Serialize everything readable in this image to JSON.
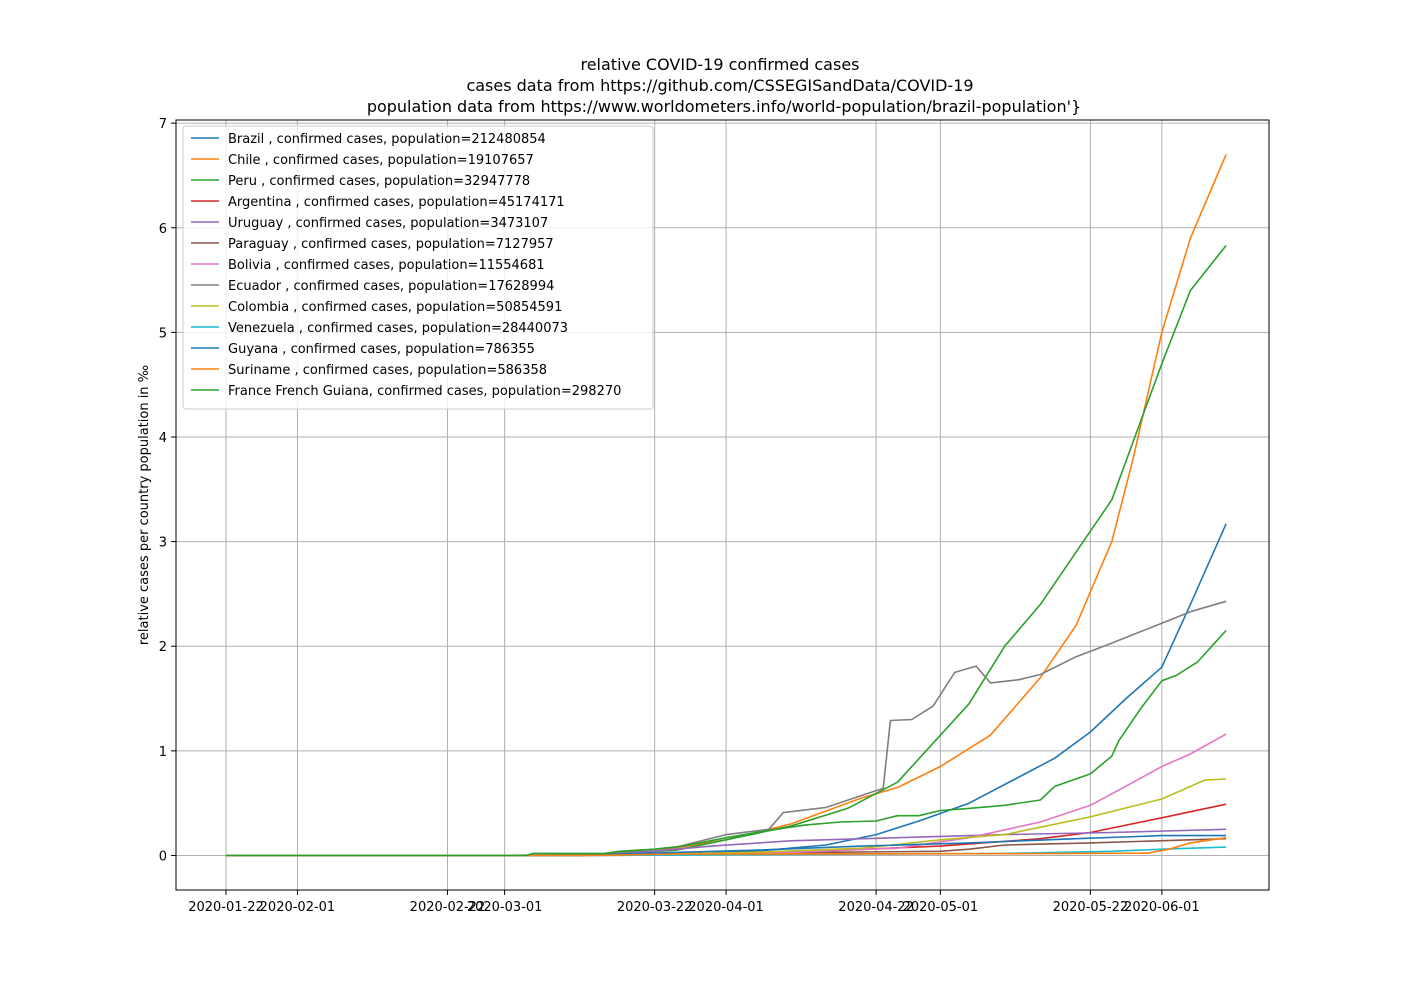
{
  "chart_data": {
    "type": "line",
    "title": "relative COVID-19 confirmed cases",
    "subtitle_lines": [
      "cases data from https://github.com/CSSEGISandData/COVID-19",
      "population data from https://www.worldometers.info/world-population/brazil-population'}"
    ],
    "xlabel": "",
    "ylabel": "relative cases per country population in ‰",
    "x_ticks": [
      "2020-01-22",
      "2020-02-01",
      "2020-02-22",
      "2020-03-01",
      "2020-03-22",
      "2020-04-01",
      "2020-04-22",
      "2020-05-01",
      "2020-05-22",
      "2020-06-01"
    ],
    "y_ticks": [
      "0",
      "1",
      "2",
      "3",
      "4",
      "5",
      "6",
      "7"
    ],
    "xlim": [
      "2020-01-15",
      "2020-06-16"
    ],
    "ylim": [
      -0.33,
      7.03
    ],
    "grid": true,
    "legend_position": "top-left",
    "series": [
      {
        "name": "Brazil , confirmed cases, population=212480854",
        "color": "#1f77b4",
        "points": [
          [
            "2020-01-22",
            0
          ],
          [
            "2020-03-10",
            0
          ],
          [
            "2020-03-25",
            0.01
          ],
          [
            "2020-04-05",
            0.04
          ],
          [
            "2020-04-15",
            0.1
          ],
          [
            "2020-04-22",
            0.2
          ],
          [
            "2020-04-28",
            0.33
          ],
          [
            "2020-05-05",
            0.5
          ],
          [
            "2020-05-12",
            0.75
          ],
          [
            "2020-05-17",
            0.93
          ],
          [
            "2020-05-22",
            1.18
          ],
          [
            "2020-05-27",
            1.5
          ],
          [
            "2020-06-01",
            1.8
          ],
          [
            "2020-06-05",
            2.4
          ],
          [
            "2020-06-10",
            3.17
          ]
        ]
      },
      {
        "name": "Chile , confirmed cases, population=19107657",
        "color": "#ff7f0e",
        "points": [
          [
            "2020-01-22",
            0
          ],
          [
            "2020-03-03",
            0
          ],
          [
            "2020-03-15",
            0.01
          ],
          [
            "2020-03-22",
            0.04
          ],
          [
            "2020-04-01",
            0.15
          ],
          [
            "2020-04-10",
            0.3
          ],
          [
            "2020-04-20",
            0.55
          ],
          [
            "2020-04-25",
            0.65
          ],
          [
            "2020-05-01",
            0.85
          ],
          [
            "2020-05-08",
            1.15
          ],
          [
            "2020-05-15",
            1.7
          ],
          [
            "2020-05-20",
            2.2
          ],
          [
            "2020-05-25",
            3.0
          ],
          [
            "2020-05-28",
            3.8
          ],
          [
            "2020-06-01",
            5.0
          ],
          [
            "2020-06-05",
            5.9
          ],
          [
            "2020-06-10",
            6.7
          ]
        ]
      },
      {
        "name": "Peru , confirmed cases, population=32947778",
        "color": "#2ca02c",
        "points": [
          [
            "2020-01-22",
            0
          ],
          [
            "2020-03-06",
            0
          ],
          [
            "2020-03-15",
            0.01
          ],
          [
            "2020-03-25",
            0.05
          ],
          [
            "2020-04-01",
            0.15
          ],
          [
            "2020-04-10",
            0.28
          ],
          [
            "2020-04-18",
            0.45
          ],
          [
            "2020-04-25",
            0.7
          ],
          [
            "2020-05-01",
            1.15
          ],
          [
            "2020-05-05",
            1.45
          ],
          [
            "2020-05-10",
            2.0
          ],
          [
            "2020-05-15",
            2.4
          ],
          [
            "2020-05-20",
            2.9
          ],
          [
            "2020-05-25",
            3.4
          ],
          [
            "2020-06-01",
            4.7
          ],
          [
            "2020-06-05",
            5.4
          ],
          [
            "2020-06-10",
            5.83
          ]
        ]
      },
      {
        "name": "Argentina , confirmed cases, population=45174171",
        "color": "#d62728",
        "points": [
          [
            "2020-01-22",
            0
          ],
          [
            "2020-03-05",
            0
          ],
          [
            "2020-03-20",
            0.01
          ],
          [
            "2020-04-10",
            0.03
          ],
          [
            "2020-05-01",
            0.09
          ],
          [
            "2020-05-15",
            0.16
          ],
          [
            "2020-05-22",
            0.22
          ],
          [
            "2020-06-01",
            0.36
          ],
          [
            "2020-06-10",
            0.49
          ]
        ]
      },
      {
        "name": "Uruguay , confirmed cases, population=3473107",
        "color": "#9467bd",
        "points": [
          [
            "2020-01-22",
            0
          ],
          [
            "2020-03-12",
            0
          ],
          [
            "2020-03-20",
            0.03
          ],
          [
            "2020-03-30",
            0.09
          ],
          [
            "2020-04-10",
            0.14
          ],
          [
            "2020-04-25",
            0.17
          ],
          [
            "2020-05-10",
            0.2
          ],
          [
            "2020-05-25",
            0.22
          ],
          [
            "2020-06-10",
            0.25
          ]
        ]
      },
      {
        "name": "Paraguay , confirmed cases, population=7127957",
        "color": "#8c564b",
        "points": [
          [
            "2020-01-22",
            0
          ],
          [
            "2020-03-07",
            0
          ],
          [
            "2020-03-25",
            0.005
          ],
          [
            "2020-04-15",
            0.03
          ],
          [
            "2020-05-01",
            0.04
          ],
          [
            "2020-05-05",
            0.06
          ],
          [
            "2020-05-10",
            0.1
          ],
          [
            "2020-05-22",
            0.12
          ],
          [
            "2020-06-10",
            0.16
          ]
        ]
      },
      {
        "name": "Bolivia , confirmed cases, population=11554681",
        "color": "#e377c2",
        "points": [
          [
            "2020-01-22",
            0
          ],
          [
            "2020-03-10",
            0
          ],
          [
            "2020-03-25",
            0.005
          ],
          [
            "2020-04-10",
            0.03
          ],
          [
            "2020-04-25",
            0.07
          ],
          [
            "2020-05-05",
            0.17
          ],
          [
            "2020-05-15",
            0.32
          ],
          [
            "2020-05-22",
            0.48
          ],
          [
            "2020-05-28",
            0.7
          ],
          [
            "2020-06-01",
            0.85
          ],
          [
            "2020-06-05",
            0.97
          ],
          [
            "2020-06-10",
            1.16
          ]
        ]
      },
      {
        "name": "Ecuador , confirmed cases, population=17628994",
        "color": "#7f7f7f",
        "points": [
          [
            "2020-01-22",
            0
          ],
          [
            "2020-02-28",
            0
          ],
          [
            "2020-03-15",
            0.01
          ],
          [
            "2020-03-25",
            0.08
          ],
          [
            "2020-04-01",
            0.2
          ],
          [
            "2020-04-07",
            0.25
          ],
          [
            "2020-04-09",
            0.41
          ],
          [
            "2020-04-15",
            0.46
          ],
          [
            "2020-04-22",
            0.62
          ],
          [
            "2020-04-23",
            0.64
          ],
          [
            "2020-04-24",
            1.29
          ],
          [
            "2020-04-27",
            1.3
          ],
          [
            "2020-04-30",
            1.43
          ],
          [
            "2020-05-03",
            1.75
          ],
          [
            "2020-05-06",
            1.81
          ],
          [
            "2020-05-08",
            1.65
          ],
          [
            "2020-05-12",
            1.68
          ],
          [
            "2020-05-15",
            1.73
          ],
          [
            "2020-05-20",
            1.9
          ],
          [
            "2020-05-25",
            2.03
          ],
          [
            "2020-06-01",
            2.22
          ],
          [
            "2020-06-05",
            2.33
          ],
          [
            "2020-06-10",
            2.43
          ]
        ]
      },
      {
        "name": "Colombia , confirmed cases, population=50854591",
        "color": "#bcbd22",
        "points": [
          [
            "2020-01-22",
            0
          ],
          [
            "2020-03-06",
            0
          ],
          [
            "2020-03-22",
            0.01
          ],
          [
            "2020-04-05",
            0.03
          ],
          [
            "2020-04-20",
            0.07
          ],
          [
            "2020-05-01",
            0.15
          ],
          [
            "2020-05-10",
            0.2
          ],
          [
            "2020-05-22",
            0.37
          ],
          [
            "2020-06-01",
            0.54
          ],
          [
            "2020-06-07",
            0.72
          ],
          [
            "2020-06-10",
            0.73
          ]
        ]
      },
      {
        "name": "Venezuela , confirmed cases, population=28440073",
        "color": "#17becf",
        "points": [
          [
            "2020-01-22",
            0
          ],
          [
            "2020-03-13",
            0
          ],
          [
            "2020-04-10",
            0.01
          ],
          [
            "2020-05-10",
            0.02
          ],
          [
            "2020-05-25",
            0.04
          ],
          [
            "2020-06-01",
            0.06
          ],
          [
            "2020-06-10",
            0.08
          ]
        ]
      },
      {
        "name": "Guyana , confirmed cases, population=786355",
        "color": "#1f77b4",
        "points": [
          [
            "2020-01-22",
            0
          ],
          [
            "2020-03-11",
            0
          ],
          [
            "2020-03-20",
            0.02
          ],
          [
            "2020-04-05",
            0.05
          ],
          [
            "2020-04-20",
            0.09
          ],
          [
            "2020-05-05",
            0.12
          ],
          [
            "2020-05-20",
            0.16
          ],
          [
            "2020-06-01",
            0.19
          ],
          [
            "2020-06-10",
            0.19
          ]
        ]
      },
      {
        "name": "Suriname , confirmed cases, population=586358",
        "color": "#ff7f0e",
        "points": [
          [
            "2020-01-22",
            0
          ],
          [
            "2020-03-13",
            0
          ],
          [
            "2020-03-25",
            0.014
          ],
          [
            "2020-05-10",
            0.017
          ],
          [
            "2020-05-30",
            0.022
          ],
          [
            "2020-06-02",
            0.06
          ],
          [
            "2020-06-05",
            0.12
          ],
          [
            "2020-06-10",
            0.17
          ]
        ]
      },
      {
        "name": "France French Guiana, confirmed cases, population=298270",
        "color": "#2ca02c",
        "points": [
          [
            "2020-01-22",
            0
          ],
          [
            "2020-03-04",
            0
          ],
          [
            "2020-03-05",
            0.02
          ],
          [
            "2020-03-15",
            0.02
          ],
          [
            "2020-03-17",
            0.04
          ],
          [
            "2020-03-22",
            0.06
          ],
          [
            "2020-03-26",
            0.09
          ],
          [
            "2020-04-01",
            0.17
          ],
          [
            "2020-04-07",
            0.24
          ],
          [
            "2020-04-12",
            0.29
          ],
          [
            "2020-04-17",
            0.32
          ],
          [
            "2020-04-22",
            0.33
          ],
          [
            "2020-04-25",
            0.38
          ],
          [
            "2020-04-28",
            0.38
          ],
          [
            "2020-05-01",
            0.43
          ],
          [
            "2020-05-05",
            0.45
          ],
          [
            "2020-05-10",
            0.48
          ],
          [
            "2020-05-15",
            0.53
          ],
          [
            "2020-05-17",
            0.66
          ],
          [
            "2020-05-22",
            0.78
          ],
          [
            "2020-05-25",
            0.95
          ],
          [
            "2020-05-26",
            1.1
          ],
          [
            "2020-05-29",
            1.4
          ],
          [
            "2020-06-01",
            1.67
          ],
          [
            "2020-06-03",
            1.72
          ],
          [
            "2020-06-06",
            1.85
          ],
          [
            "2020-06-08",
            2.0
          ],
          [
            "2020-06-10",
            2.15
          ]
        ]
      }
    ]
  }
}
